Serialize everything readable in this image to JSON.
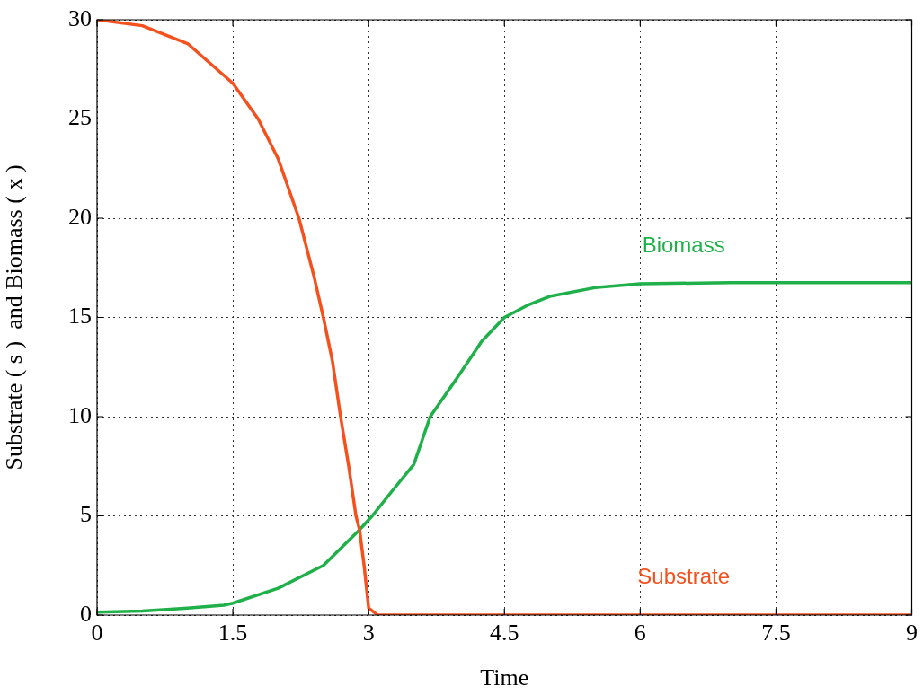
{
  "chart_data": {
    "type": "line",
    "xlabel": "Time",
    "ylabel": "Substrate ( s )  and Biomass ( x )",
    "xlim": [
      0,
      9
    ],
    "xticks": [
      0,
      1.5,
      3,
      4.5,
      6,
      7.5,
      9
    ],
    "ylim": [
      0,
      30
    ],
    "yticks": [
      0,
      5,
      10,
      15,
      20,
      25,
      30
    ],
    "grid": true,
    "legend": false,
    "marker": "none",
    "line_style": "solid",
    "series": [
      {
        "name": "Substrate",
        "color": "#f4511e",
        "x": [
          0,
          0.5,
          1,
          1.5,
          1.78,
          2.0,
          2.23,
          2.4,
          2.5,
          2.6,
          2.69,
          2.78,
          2.86,
          2.9,
          2.95,
          3.0,
          3.1,
          4,
          5,
          6,
          7,
          8,
          9
        ],
        "values": [
          30,
          29.7,
          28.8,
          26.8,
          25,
          23,
          20,
          17,
          15,
          12.8,
          10,
          7.5,
          5,
          4.3,
          2.5,
          0.36,
          0,
          0,
          0,
          0,
          0,
          0,
          0
        ]
      },
      {
        "name": "Biomass",
        "color": "#20b04a",
        "x": [
          0,
          0.5,
          1,
          1.4,
          1.5,
          2.0,
          2.5,
          2.9,
          3.04,
          3.25,
          3.5,
          3.68,
          4.0,
          4.25,
          4.5,
          4.75,
          5.0,
          5.5,
          6.0,
          7,
          8,
          9
        ],
        "values": [
          0.15,
          0.2,
          0.35,
          0.5,
          0.6,
          1.35,
          2.5,
          4.3,
          5,
          6.2,
          7.6,
          10,
          12.1,
          13.8,
          15,
          15.6,
          16.06,
          16.5,
          16.7,
          16.75,
          16.75,
          16.75
        ]
      }
    ]
  }
}
